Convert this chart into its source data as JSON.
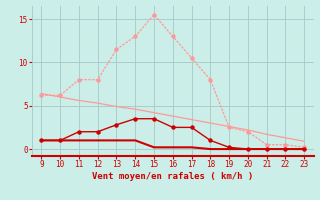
{
  "x": [
    9,
    10,
    11,
    12,
    13,
    14,
    15,
    16,
    17,
    18,
    19,
    20,
    21,
    22,
    23
  ],
  "line_rafales_y": [
    6.2,
    6.2,
    8,
    8,
    11.5,
    13,
    15.5,
    13,
    10.5,
    8,
    2.5,
    2.0,
    0.5,
    0.5,
    0.2
  ],
  "line_trend_y": [
    6.4,
    6.0,
    5.6,
    5.3,
    4.9,
    4.6,
    4.2,
    3.8,
    3.4,
    3.0,
    2.6,
    2.2,
    1.7,
    1.3,
    0.9
  ],
  "line_moyen_y": [
    1.0,
    1.0,
    2.0,
    2.0,
    2.8,
    3.5,
    3.5,
    2.5,
    2.5,
    1.0,
    0.2,
    0.0,
    0.0,
    0.0,
    0.0
  ],
  "line_base_y": [
    1.0,
    1.0,
    1.0,
    1.0,
    1.0,
    1.0,
    0.2,
    0.2,
    0.2,
    0.0,
    0.0,
    0.0,
    0.0,
    0.0,
    0.0
  ],
  "bg_color": "#cceee8",
  "grid_color": "#aacccc",
  "line_light_color": "#ff9999",
  "line_dark_color": "#cc0000",
  "tick_color": "#cc0000",
  "xlabel": "Vent moyen/en rafales ( km/h )",
  "yticks": [
    0,
    5,
    10,
    15
  ],
  "xticks": [
    9,
    10,
    11,
    12,
    13,
    14,
    15,
    16,
    17,
    18,
    19,
    20,
    21,
    22,
    23
  ],
  "xlim": [
    8.5,
    23.5
  ],
  "ylim": [
    -0.8,
    16.5
  ]
}
